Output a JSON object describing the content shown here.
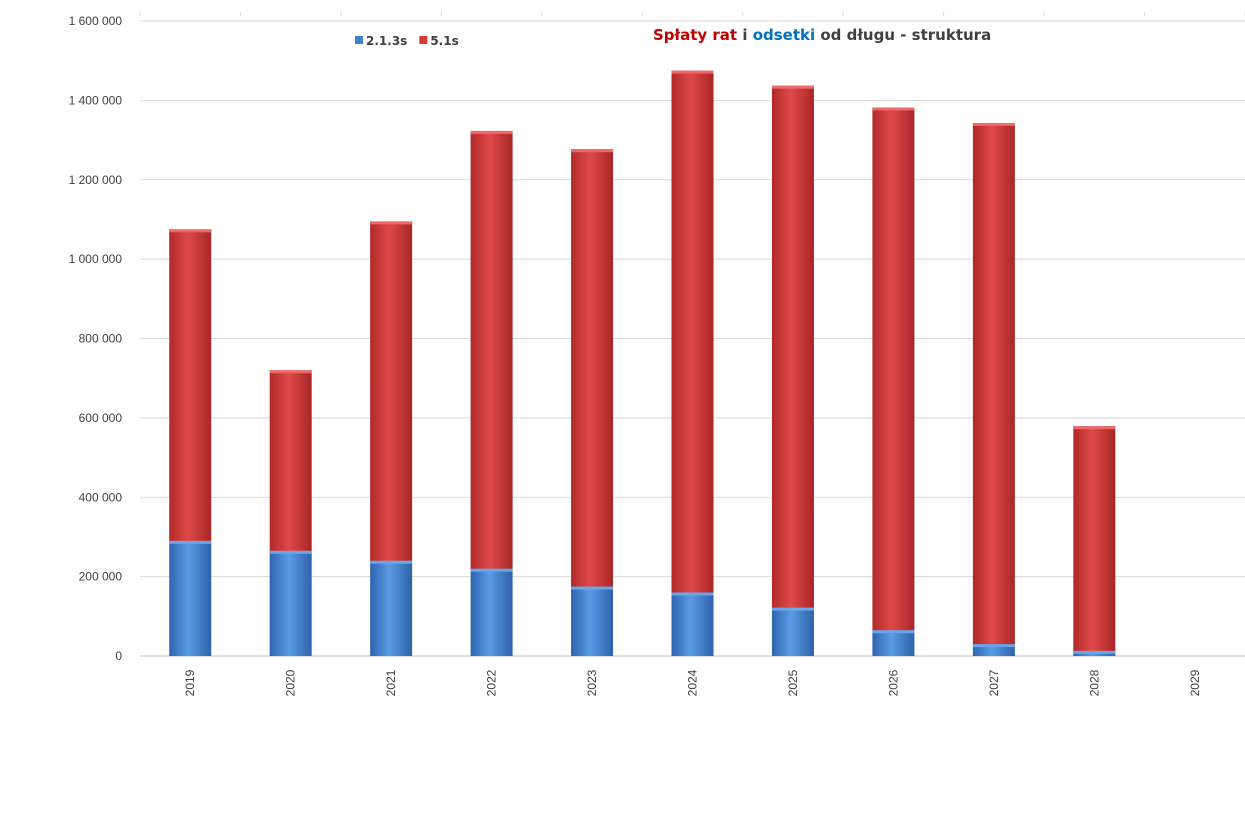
{
  "chart_data": {
    "type": "bar",
    "stacked": true,
    "title_parts": [
      {
        "text": "Spłaty rat",
        "color": "#c00000"
      },
      {
        "text": " i ",
        "color": "#404040"
      },
      {
        "text": "odsetki",
        "color": "#0070c0"
      },
      {
        "text": " od długu - struktura",
        "color": "#404040"
      }
    ],
    "categories": [
      "2019",
      "2020",
      "2021",
      "2022",
      "2023",
      "2024",
      "2025",
      "2026",
      "2027",
      "2028",
      "2029"
    ],
    "series": [
      {
        "name": "2.1.3s",
        "color": "#3f80d0",
        "values": [
          290000,
          265000,
          240000,
          220000,
          175000,
          160000,
          122000,
          65000,
          30000,
          13000,
          0
        ]
      },
      {
        "name": "5.1s",
        "color": "#d23b3b",
        "values": [
          785000,
          455000,
          855000,
          1103000,
          1102000,
          1315000,
          1315000,
          1317000,
          1313000,
          566000,
          0
        ]
      }
    ],
    "y_ticks": [
      "0",
      "200 000",
      "400 000",
      "600 000",
      "800 000",
      "1 000 000",
      "1 200 000",
      "1 400 000",
      "1 600 000"
    ],
    "ylim": [
      0,
      1600000
    ],
    "grid": true,
    "legend_position": "top-left"
  }
}
